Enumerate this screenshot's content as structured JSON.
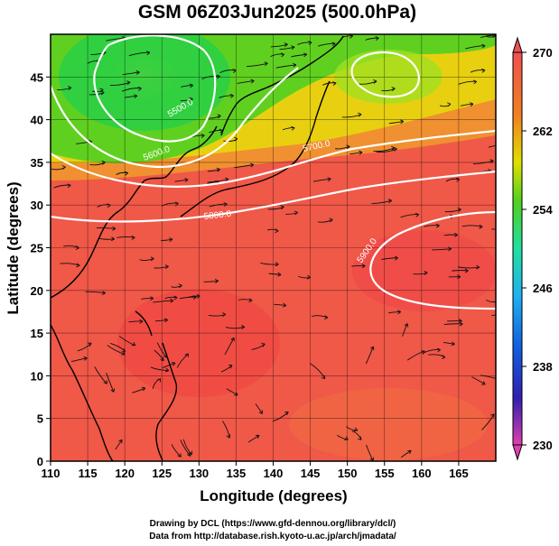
{
  "chart_data": {
    "type": "heatmap",
    "title": "GSM 06Z03Jun2025 (500.0hPa)",
    "xlabel": "Longitude (degrees)",
    "ylabel": "Latitude  (degrees)",
    "xlim": [
      110,
      170
    ],
    "ylim": [
      0,
      50
    ],
    "x_ticks": [
      110,
      115,
      120,
      125,
      130,
      135,
      140,
      145,
      150,
      155,
      160,
      165
    ],
    "y_ticks": [
      0,
      5,
      10,
      15,
      20,
      25,
      30,
      35,
      40,
      45
    ],
    "colorbar": {
      "min": 230,
      "max": 270,
      "ticks": [
        230,
        238,
        246,
        254,
        262,
        270
      ],
      "colors": [
        "#e040b0",
        "#2020c0",
        "#2090f0",
        "#20e0b0",
        "#40d020",
        "#f0f000",
        "#f08020",
        "#f05050"
      ]
    },
    "contours": [
      {
        "level": 5500.0,
        "label": "5500.0"
      },
      {
        "level": 5600.0,
        "label": "5600.0"
      },
      {
        "level": 5700.0,
        "label": "5700.0"
      },
      {
        "level": 5800.0,
        "label": "5800.0"
      },
      {
        "level": 5900.0,
        "label": "5900.0"
      }
    ],
    "temperature_field_description": [
      {
        "lon": 123,
        "lat": 46,
        "temp": 253
      },
      {
        "lon": 155,
        "lat": 45,
        "temp": 258
      },
      {
        "lon": 135,
        "lat": 40,
        "temp": 257
      },
      {
        "lon": 140,
        "lat": 33,
        "temp": 266
      },
      {
        "lon": 160,
        "lat": 26,
        "temp": 266
      },
      {
        "lon": 130,
        "lat": 15,
        "temp": 268
      },
      {
        "lon": 150,
        "lat": 5,
        "temp": 266
      }
    ]
  },
  "credits": {
    "line1": "Drawing by DCL (https://www.gfd-dennou.org/library/dcl/)",
    "line2": "Data from http://database.rish.kyoto-u.ac.jp/arch/jmadata/"
  }
}
